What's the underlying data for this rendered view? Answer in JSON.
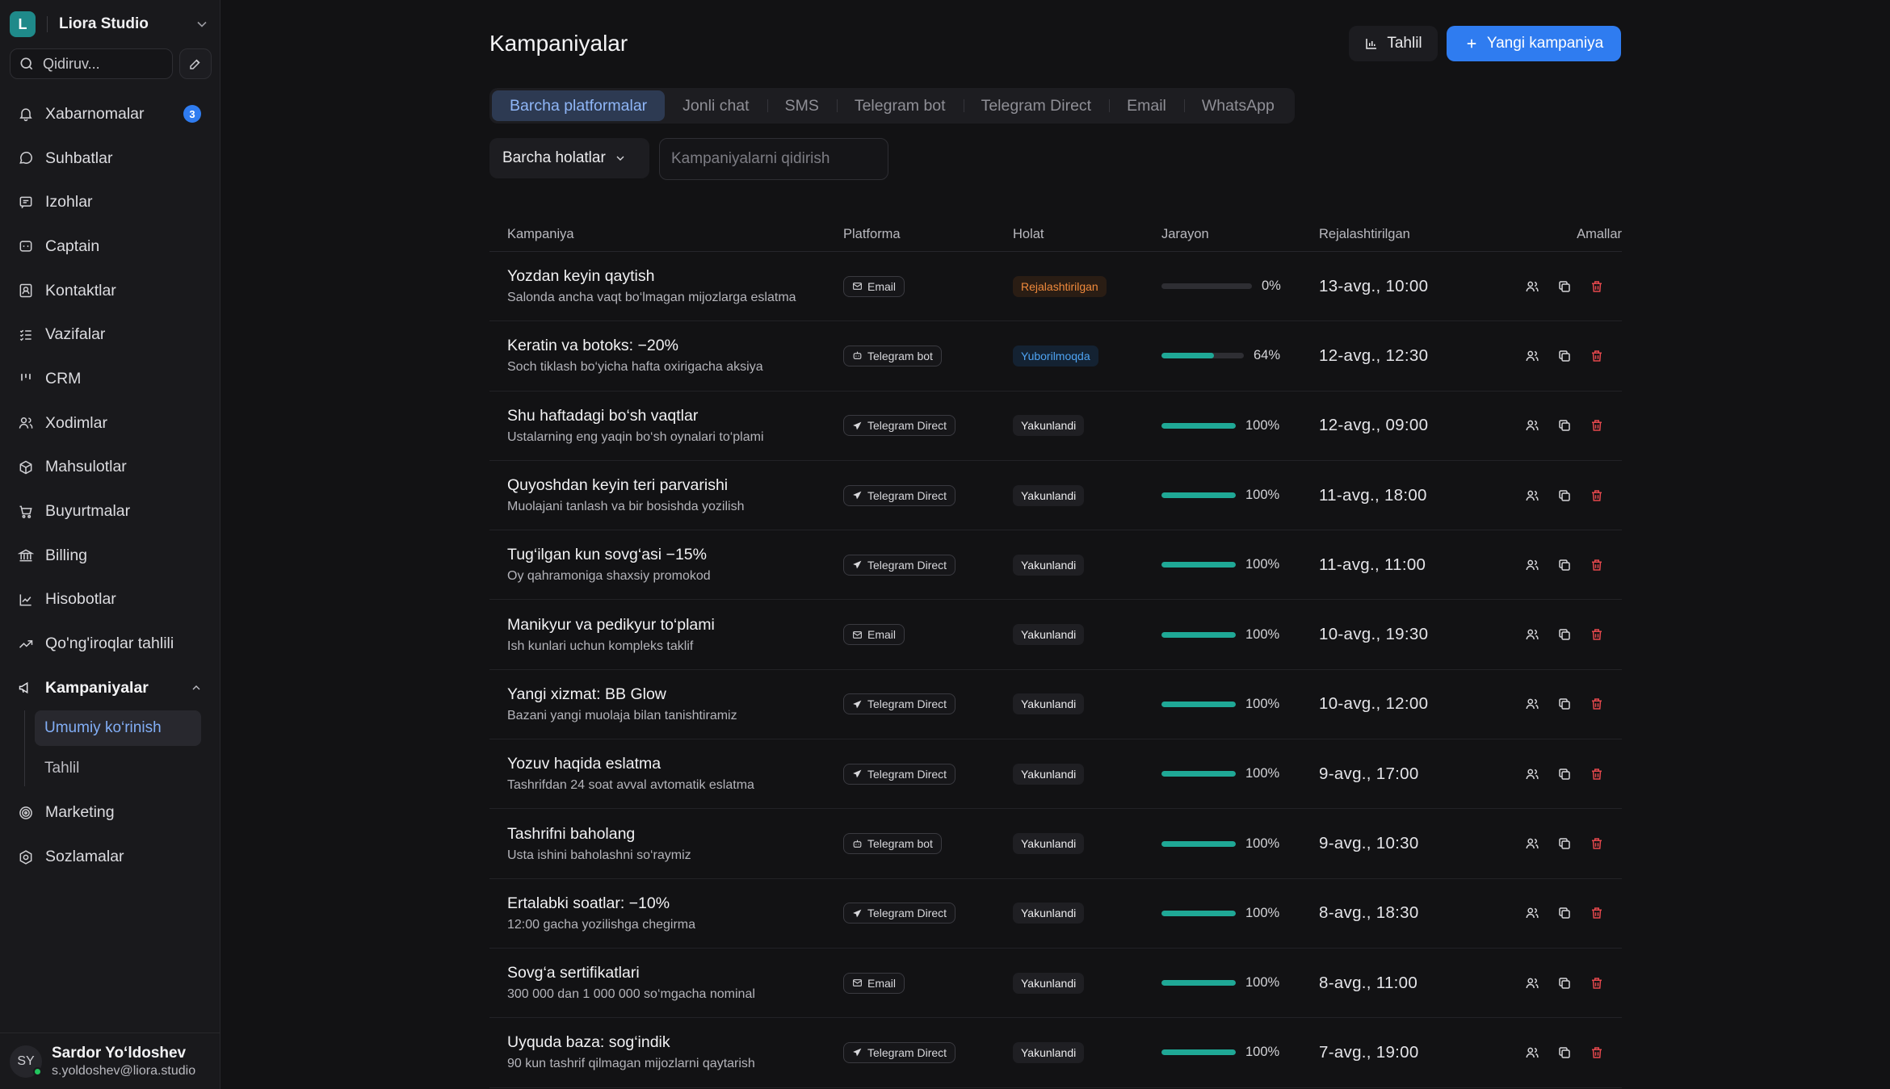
{
  "workspace": {
    "initial": "L",
    "name": "Liora Studio"
  },
  "sidebar": {
    "search_placeholder": "Qidiruv...",
    "items": [
      {
        "key": "notifications",
        "label": "Xabarnomalar",
        "badge": "3"
      },
      {
        "key": "chats",
        "label": "Suhbatlar"
      },
      {
        "key": "comments",
        "label": "Izohlar"
      },
      {
        "key": "captain",
        "label": "Captain"
      },
      {
        "key": "contacts",
        "label": "Kontaktlar"
      },
      {
        "key": "tasks",
        "label": "Vazifalar"
      },
      {
        "key": "crm",
        "label": "CRM"
      },
      {
        "key": "staff",
        "label": "Xodimlar"
      },
      {
        "key": "products",
        "label": "Mahsulotlar"
      },
      {
        "key": "orders",
        "label": "Buyurtmalar"
      },
      {
        "key": "billing",
        "label": "Billing"
      },
      {
        "key": "reports",
        "label": "Hisobotlar"
      },
      {
        "key": "call-analytics",
        "label": "Qo'ng'iroqlar tahlili"
      },
      {
        "key": "campaigns",
        "label": "Kampaniyalar"
      },
      {
        "key": "marketing",
        "label": "Marketing"
      },
      {
        "key": "settings",
        "label": "Sozlamalar"
      }
    ],
    "campaign_sub": [
      {
        "label": "Umumiy ko‘rinish",
        "active": true
      },
      {
        "label": "Tahlil",
        "active": false
      }
    ]
  },
  "user": {
    "initials": "SY",
    "name": "Sardor Yo‘ldoshev",
    "email": "s.yoldoshev@liora.studio"
  },
  "header": {
    "title": "Kampaniyalar",
    "analyze_label": "Tahlil",
    "new_label": "Yangi kampaniya"
  },
  "tabs": [
    {
      "label": "Barcha platformalar",
      "active": true
    },
    {
      "label": "Jonli chat"
    },
    {
      "label": "SMS"
    },
    {
      "label": "Telegram bot"
    },
    {
      "label": "Telegram Direct"
    },
    {
      "label": "Email"
    },
    {
      "label": "WhatsApp"
    }
  ],
  "filters": {
    "status_label": "Barcha holatlar",
    "search_placeholder": "Kampaniyalarni qidirish"
  },
  "table": {
    "columns": [
      "Kampaniya",
      "Platforma",
      "Holat",
      "Jarayon",
      "Rejalashtirilgan",
      "Amallar"
    ],
    "rows": [
      {
        "title": "Yozdan keyin qaytish",
        "subtitle": "Salonda ancha vaqt bo‘lmagan mijozlarga eslatma",
        "platform": "Email",
        "status": "Rejalashtirilgan",
        "progress": 0,
        "progress_label": "0%",
        "date": "13-avg., 10:00"
      },
      {
        "title": "Keratin va botoks: −20%",
        "subtitle": "Soch tiklash bo‘yicha hafta oxirigacha aksiya",
        "platform": "Telegram bot",
        "status": "Yuborilmoqda",
        "progress": 64,
        "progress_label": "64%",
        "date": "12-avg., 12:30"
      },
      {
        "title": "Shu haftadagi bo‘sh vaqtlar",
        "subtitle": "Ustalarning eng yaqin bo‘sh oynalari to‘plami",
        "platform": "Telegram Direct",
        "status": "Yakunlandi",
        "progress": 100,
        "progress_label": "100%",
        "date": "12-avg., 09:00"
      },
      {
        "title": "Quyoshdan keyin teri parvarishi",
        "subtitle": "Muolajani tanlash va bir bosishda yozilish",
        "platform": "Telegram Direct",
        "status": "Yakunlandi",
        "progress": 100,
        "progress_label": "100%",
        "date": "11-avg., 18:00"
      },
      {
        "title": "Tug‘ilgan kun sovg‘asi −15%",
        "subtitle": "Oy qahramoniga shaxsiy promokod",
        "platform": "Telegram Direct",
        "status": "Yakunlandi",
        "progress": 100,
        "progress_label": "100%",
        "date": "11-avg., 11:00"
      },
      {
        "title": "Manikyur va pedikyur to‘plami",
        "subtitle": "Ish kunlari uchun kompleks taklif",
        "platform": "Email",
        "status": "Yakunlandi",
        "progress": 100,
        "progress_label": "100%",
        "date": "10-avg., 19:30"
      },
      {
        "title": "Yangi xizmat: BB Glow",
        "subtitle": "Bazani yangi muolaja bilan tanishtiramiz",
        "platform": "Telegram Direct",
        "status": "Yakunlandi",
        "progress": 100,
        "progress_label": "100%",
        "date": "10-avg., 12:00"
      },
      {
        "title": "Yozuv haqida eslatma",
        "subtitle": "Tashrifdan 24 soat avval avtomatik eslatma",
        "platform": "Telegram Direct",
        "status": "Yakunlandi",
        "progress": 100,
        "progress_label": "100%",
        "date": "9-avg., 17:00"
      },
      {
        "title": "Tashrifni baholang",
        "subtitle": "Usta ishini baholashni so‘raymiz",
        "platform": "Telegram bot",
        "status": "Yakunlandi",
        "progress": 100,
        "progress_label": "100%",
        "date": "9-avg., 10:30"
      },
      {
        "title": "Ertalabki soatlar: −10%",
        "subtitle": "12:00 gacha yozilishga chegirma",
        "platform": "Telegram Direct",
        "status": "Yakunlandi",
        "progress": 100,
        "progress_label": "100%",
        "date": "8-avg., 18:30"
      },
      {
        "title": "Sovg‘a sertifikatlari",
        "subtitle": "300 000 dan 1 000 000 so‘mgacha nominal",
        "platform": "Email",
        "status": "Yakunlandi",
        "progress": 100,
        "progress_label": "100%",
        "date": "8-avg., 11:00"
      },
      {
        "title": "Uyquda baza: sog‘indik",
        "subtitle": "90 kun tashrif qilmagan mijozlarni qaytarish",
        "platform": "Telegram Direct",
        "status": "Yakunlandi",
        "progress": 100,
        "progress_label": "100%",
        "date": "7-avg., 19:00"
      }
    ]
  },
  "colors": {
    "accent": "#2f7cf0",
    "progress": "#1fa896",
    "scheduled": "#f08a3c",
    "sending": "#4ea3f2",
    "delete": "#e5484d"
  }
}
